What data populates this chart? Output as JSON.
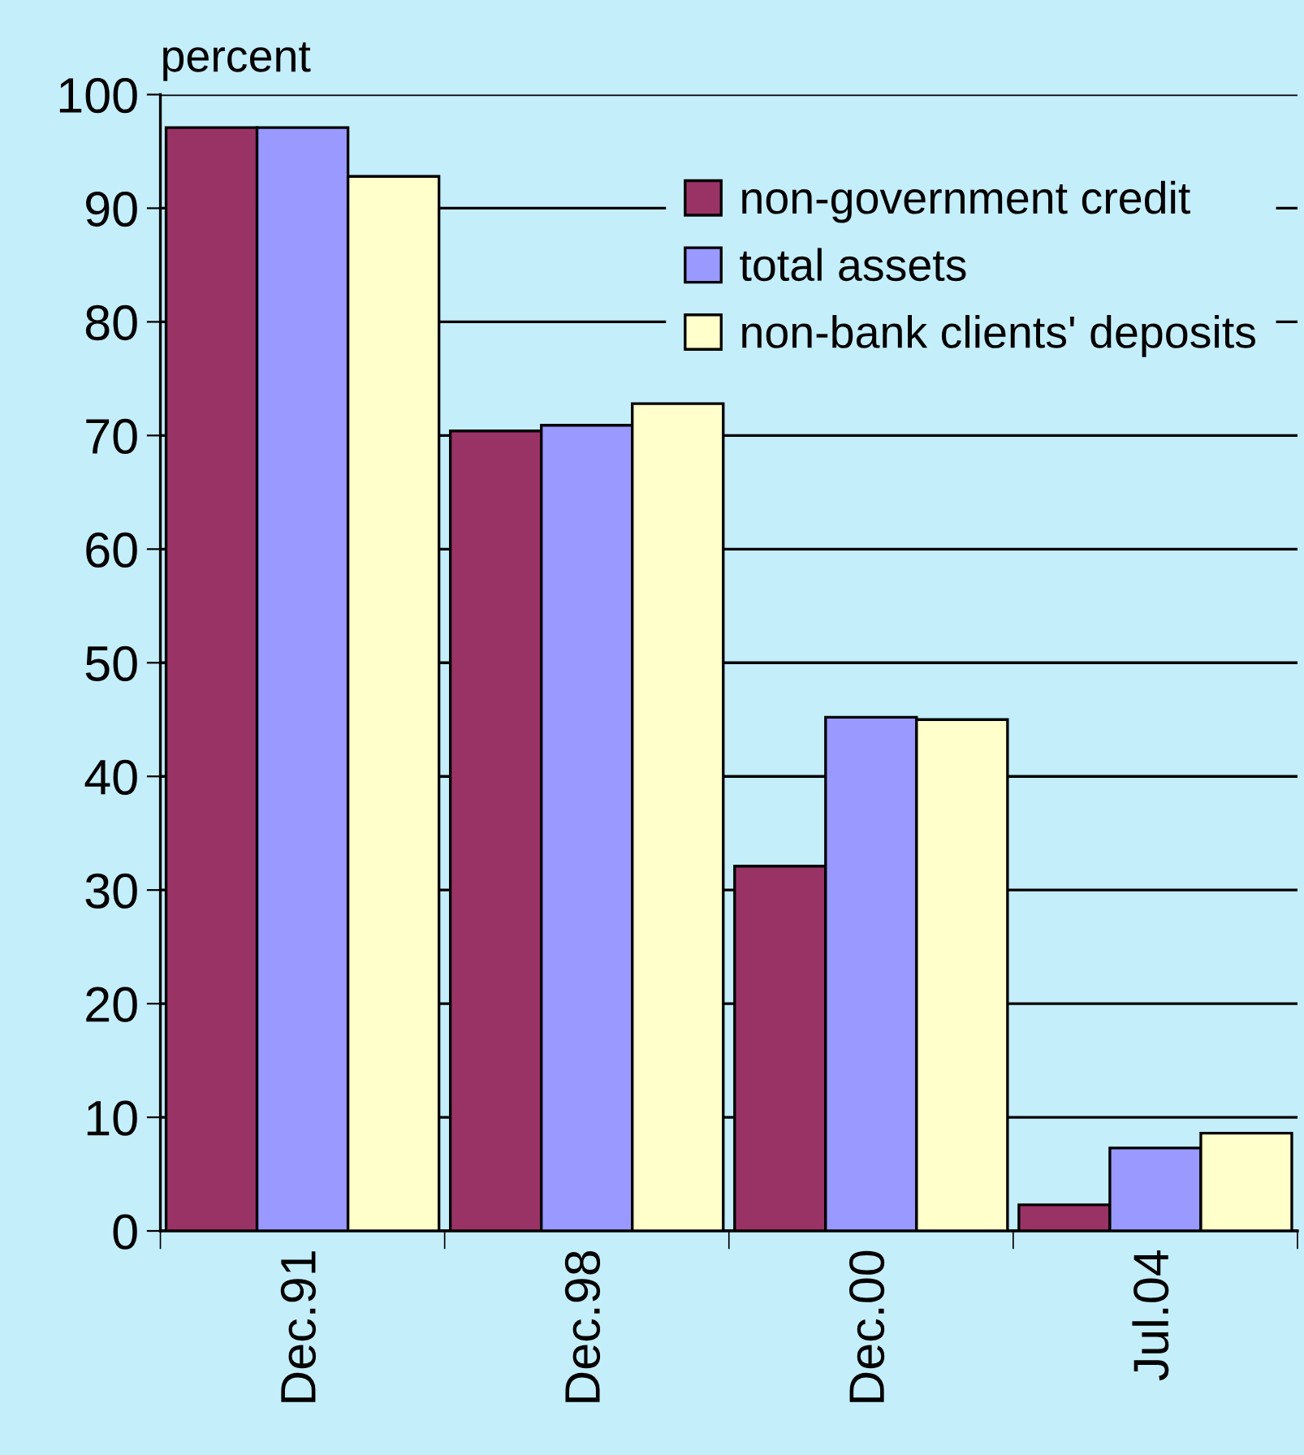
{
  "chart_data": {
    "type": "bar",
    "ylabel": "percent",
    "categories": [
      "Dec.91",
      "Dec.98",
      "Dec.00",
      "Jul.04"
    ],
    "series": [
      {
        "name": "non-government credit",
        "color": "#993366",
        "values": [
          97.1,
          70.4,
          32.1,
          2.3
        ]
      },
      {
        "name": "total assets",
        "color": "#9999ff",
        "values": [
          97.1,
          70.9,
          45.2,
          7.3
        ]
      },
      {
        "name": "non-bank clients' deposits",
        "color": "#ffffcc",
        "values": [
          92.8,
          72.8,
          45.0,
          8.6
        ]
      }
    ],
    "ylim": [
      0,
      100
    ],
    "yticks": [
      0,
      10,
      20,
      30,
      40,
      50,
      60,
      70,
      80,
      90,
      100
    ],
    "grid": "y",
    "legend": "top right"
  }
}
